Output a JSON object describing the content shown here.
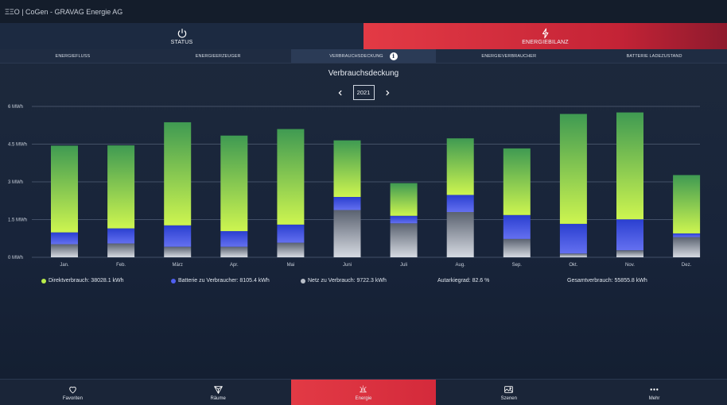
{
  "app": {
    "title": "ΞΞO | CoGen - GRAVAG Energie AG"
  },
  "main_tabs": [
    {
      "label": "STATUS",
      "icon": "power-icon"
    },
    {
      "label": "ENERGIEBILANZ",
      "icon": "lightning-icon"
    }
  ],
  "sub_tabs": [
    {
      "label": "ENERGIEFLUSS"
    },
    {
      "label": "ENERGIEERZEUGER"
    },
    {
      "label": "VERBRAUCHSDECKUNG",
      "active": true
    },
    {
      "label": "ENERGIEVERBRAUCHER"
    },
    {
      "label": "BATTERIE LADEZUSTAND"
    }
  ],
  "chart_header": {
    "title": "Verbrauchsdeckung",
    "year": "2021"
  },
  "colors": {
    "direkt_top": "#3f9a52",
    "direkt_bottom": "#cdf550",
    "batterie_top": "#2a3fd0",
    "batterie_bottom": "#6470f0",
    "netz_top": "#5a6270",
    "netz_bottom": "#d6dae2",
    "accent": "#e23a45"
  },
  "chart_data": {
    "type": "bar",
    "stacked": true,
    "title": "Verbrauchsdeckung",
    "ylabel": "",
    "ylim": [
      0,
      6
    ],
    "yticks": [
      "0 MWh",
      "1.5 MWh",
      "3 MWh",
      "4.5 MWh",
      "6 MWh"
    ],
    "ytick_values": [
      0,
      1.5,
      3,
      4.5,
      6
    ],
    "grid": true,
    "categories": [
      "Jan.",
      "Feb.",
      "März",
      "Apr.",
      "Mai",
      "Juni",
      "Juli",
      "Aug.",
      "Sep.",
      "Okt.",
      "Nov.",
      "Dez."
    ],
    "series": [
      {
        "name": "Netz zu Verbrauch",
        "values": [
          0.52,
          0.55,
          0.42,
          0.42,
          0.58,
          1.88,
          1.35,
          1.8,
          0.73,
          0.15,
          0.28,
          0.8
        ]
      },
      {
        "name": "Batterie zu Verbraucher",
        "values": [
          0.47,
          0.6,
          0.85,
          0.62,
          0.72,
          0.52,
          0.3,
          0.68,
          0.95,
          1.18,
          1.23,
          0.15
        ]
      },
      {
        "name": "Direktverbrauch",
        "values": [
          3.45,
          3.3,
          4.1,
          3.8,
          3.8,
          2.25,
          1.3,
          2.25,
          2.65,
          4.37,
          4.25,
          2.32
        ]
      }
    ]
  },
  "legend": [
    {
      "label": "Direktverbrauch: 38028.1 kWh",
      "color": "#b9ec4a"
    },
    {
      "label": "Batterie zu Verbraucher: 8105.4 kWh",
      "color": "#4f5ff0"
    },
    {
      "label": "Netz zu Verbrauch: 9722.3 kWh",
      "color": "#b8bec8"
    },
    {
      "label": "Autarkiegrad: 82.6 %"
    },
    {
      "label": "Gesamtverbrauch: 55855.8 kWh"
    }
  ],
  "bottom_nav": [
    {
      "label": "Favoriten",
      "icon": "heart-icon"
    },
    {
      "label": "Räume",
      "icon": "rooms-icon"
    },
    {
      "label": "Energie",
      "icon": "energy-icon",
      "active": true
    },
    {
      "label": "Szenen",
      "icon": "scenes-icon"
    },
    {
      "label": "Mehr",
      "icon": "more-icon"
    }
  ]
}
